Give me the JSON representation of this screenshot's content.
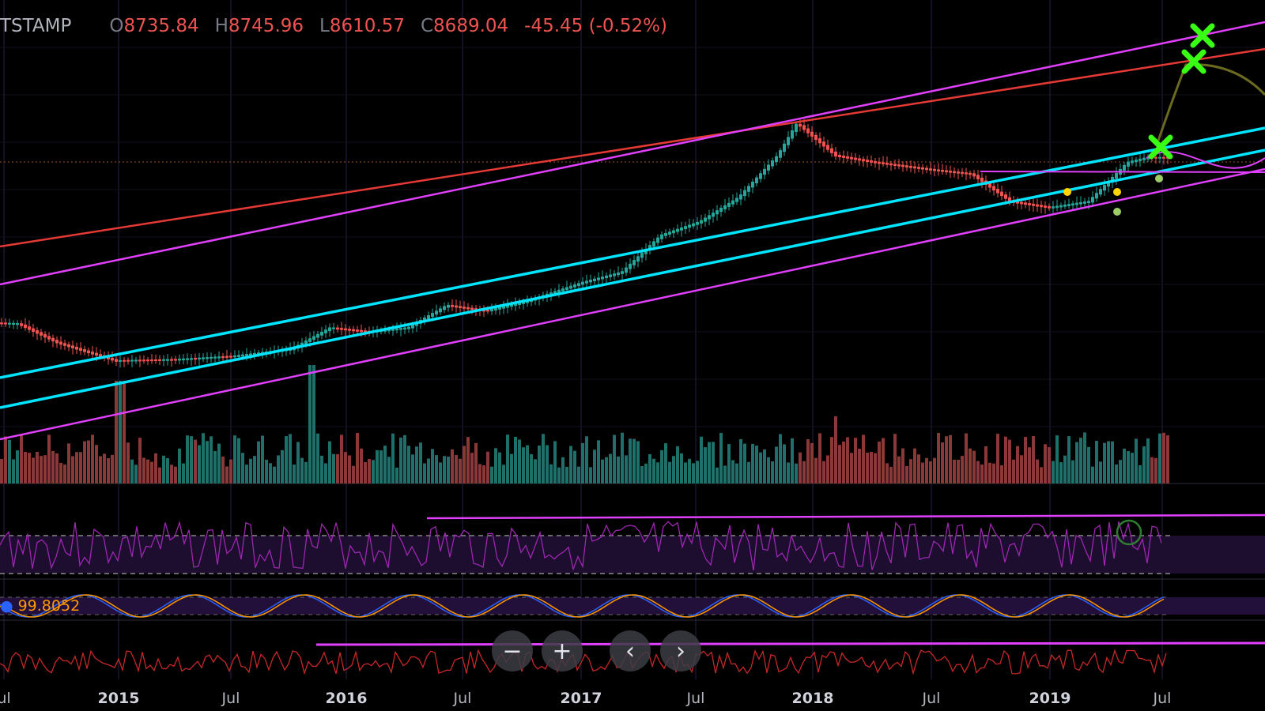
{
  "header": {
    "symbol": "TSTAMP",
    "open_key": "O",
    "open": "8735.84",
    "high_key": "H",
    "high": "8745.96",
    "low_key": "L",
    "low": "8610.57",
    "close_key": "C",
    "close": "8689.04",
    "change": "-45.45 (-0.52%)"
  },
  "stoch_value": "99.8052",
  "nav": {
    "zoom_out": "−",
    "zoom_in": "+",
    "back": "‹",
    "forward": "›"
  },
  "x_axis": [
    "ul",
    "2015",
    "Jul",
    "2016",
    "Jul",
    "2017",
    "Jul",
    "2018",
    "Jul",
    "2019",
    "Jul"
  ],
  "colors": {
    "up": "#26a69a",
    "down": "#ef5350",
    "cyan": "#00e5ff",
    "magenta": "#e040fb",
    "red": "#e53935",
    "green_x": "#39ff14",
    "rsi": "#9c27b0"
  },
  "chart_data": {
    "type": "candlestick",
    "price_series": [
      [
        "2014-05",
        480
      ],
      [
        "2014-08",
        460
      ],
      [
        "2014-10",
        330
      ],
      [
        "2015-01",
        240
      ],
      [
        "2015-04",
        245
      ],
      [
        "2015-07",
        260
      ],
      [
        "2015-10",
        295
      ],
      [
        "2015-12",
        430
      ],
      [
        "2016-02",
        400
      ],
      [
        "2016-04",
        430
      ],
      [
        "2016-06",
        640
      ],
      [
        "2016-08",
        580
      ],
      [
        "2016-10",
        680
      ],
      [
        "2017-01",
        960
      ],
      [
        "2017-03",
        1150
      ],
      [
        "2017-05",
        2200
      ],
      [
        "2017-07",
        2800
      ],
      [
        "2017-09",
        4300
      ],
      [
        "2017-11",
        9000
      ],
      [
        "2017-12",
        16000
      ],
      [
        "2018-02",
        9000
      ],
      [
        "2018-04",
        8000
      ],
      [
        "2018-07",
        7000
      ],
      [
        "2018-09",
        6500
      ],
      [
        "2018-11",
        4000
      ],
      [
        "2019-01",
        3600
      ],
      [
        "2019-03",
        4000
      ],
      [
        "2019-05",
        8000
      ],
      [
        "2019-06",
        8689.04
      ]
    ],
    "annotations": [
      "channel lines",
      "target markers",
      "RSI",
      "Stochastic RSI",
      "indicator"
    ]
  }
}
